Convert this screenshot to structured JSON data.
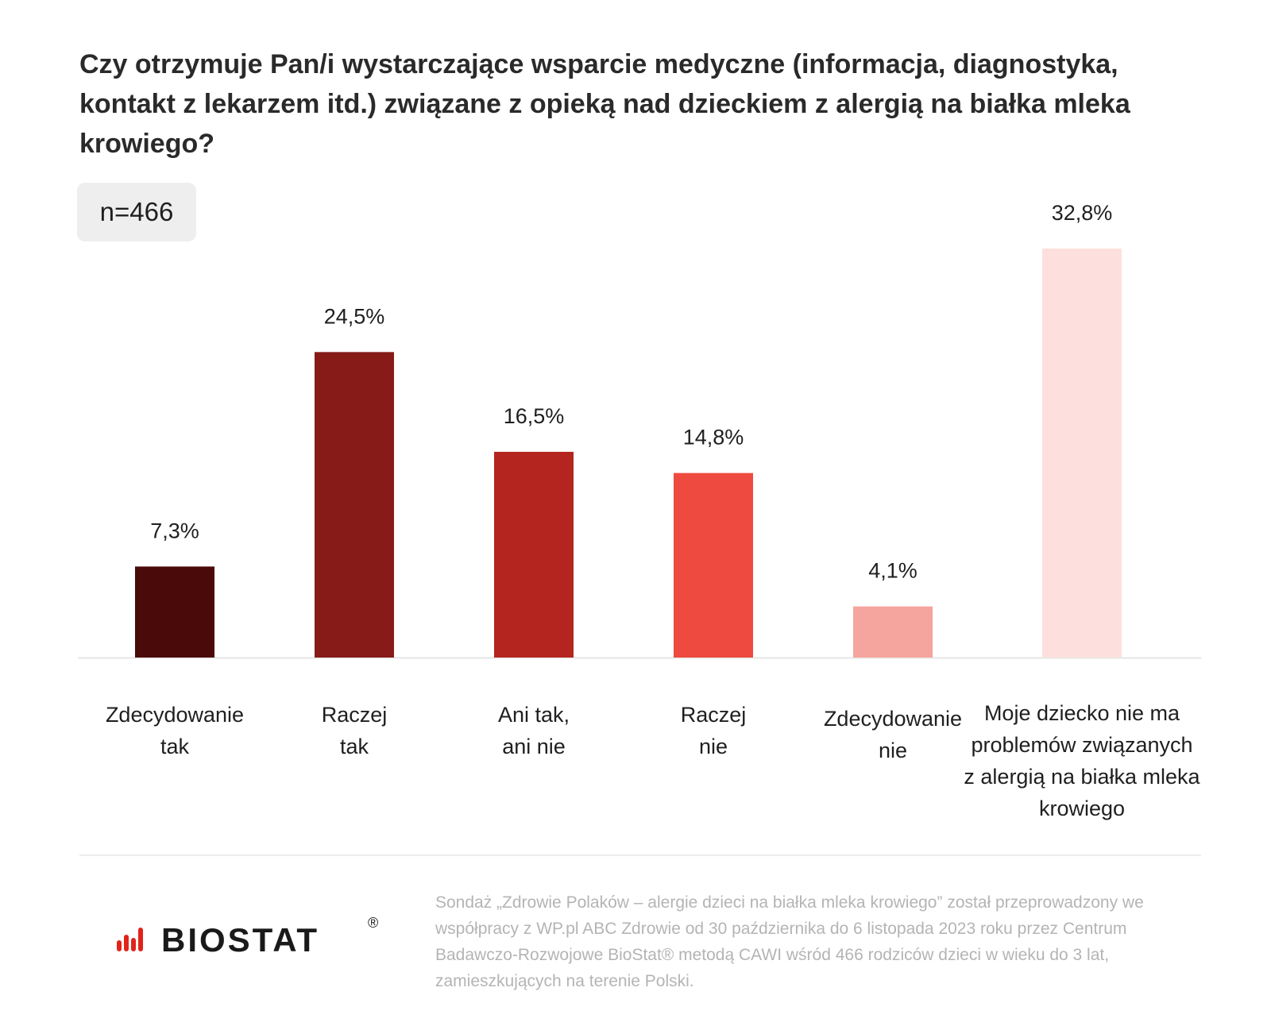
{
  "title": "Czy otrzymuje Pan/i wystarczające wsparcie medyczne (informacja, diagnostyka, kontakt z lekarzem itd.) związane z opieką nad dzieckiem z alergią na białka mleka krowiego?",
  "sample_badge": "n=466",
  "chart_data": {
    "type": "bar",
    "categories": [
      [
        "Zdecydowanie",
        "tak"
      ],
      [
        "Raczej",
        "tak"
      ],
      [
        "Ani tak,",
        "ani nie"
      ],
      [
        "Raczej",
        "nie"
      ],
      [
        "Zdecydowanie",
        "nie"
      ],
      [
        "Moje dziecko nie ma",
        "problemów związanych",
        "z alergią na białka mleka",
        "krowiego"
      ]
    ],
    "values": [
      7.3,
      24.5,
      16.5,
      14.8,
      4.1,
      32.8
    ],
    "value_labels": [
      "7,3%",
      "24,5%",
      "16,5%",
      "14,8%",
      "4,1%",
      "32,8%"
    ],
    "colors": [
      "#4a0a0a",
      "#861b18",
      "#b5251f",
      "#ee4a3f",
      "#f5a59e",
      "#fde0dd"
    ],
    "ylim": [
      0,
      32.8
    ],
    "grid": false,
    "legend": "none"
  },
  "footer": {
    "logo_text": "BIOSTAT",
    "logo_mark": "®",
    "note": "Sondaż „Zdrowie Polaków – alergie dzieci na białka mleka krowiego” został przeprowadzony we współpracy z WP.pl ABC Zdrowie od 30 października do 6 listopada 2023 roku przez Centrum Badawczo-Rozwojowe BioStat® metodą CAWI wśród 466 rodziców dzieci w wieku do 3 lat, zamieszkujących na terenie Polski."
  },
  "colors": {
    "logo_accent": "#e2231a",
    "logo_text": "#1a1a1a"
  }
}
